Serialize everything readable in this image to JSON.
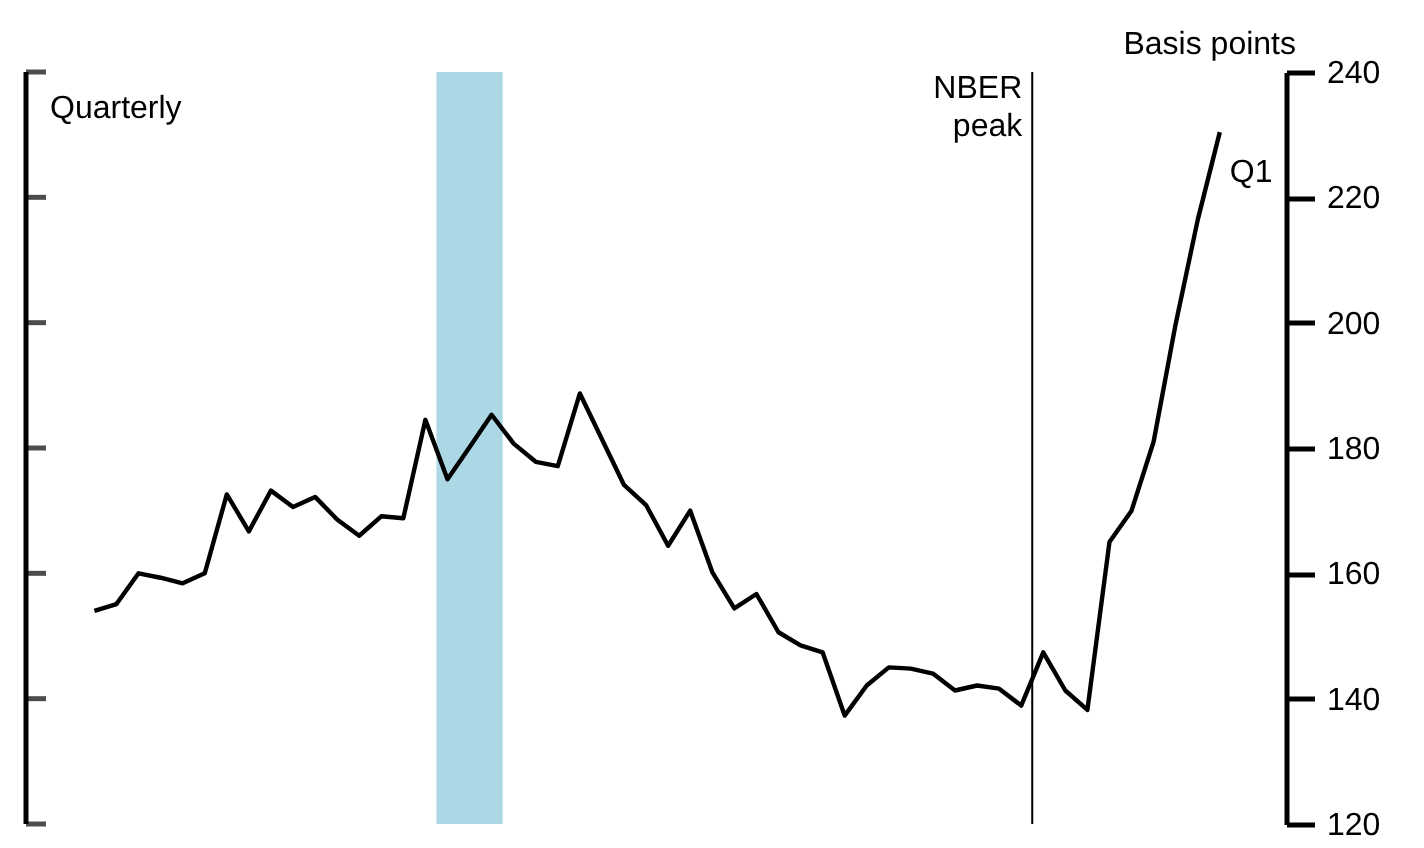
{
  "chart_data": {
    "type": "line",
    "categories": [
      null,
      null,
      null,
      null,
      null,
      null,
      null,
      null,
      null,
      null,
      null,
      null,
      null,
      null,
      null,
      null,
      null,
      null,
      null,
      null,
      null,
      null,
      null,
      null,
      null,
      null,
      null,
      null,
      null,
      null,
      null,
      null,
      null,
      null,
      null,
      null,
      null,
      null,
      null,
      null,
      null,
      null,
      null,
      null,
      null,
      null,
      null,
      null,
      null,
      null,
      null,
      null
    ],
    "series": [
      {
        "color": "#000000",
        "values": [
          154.0,
          155.1,
          160.0,
          159.3,
          158.4,
          160.0,
          172.6,
          166.7,
          173.2,
          170.6,
          172.2,
          168.6,
          166.0,
          169.1,
          168.8,
          184.5,
          175.0,
          180.1,
          185.3,
          180.7,
          177.8,
          177.1,
          188.7,
          181.4,
          174.1,
          170.9,
          164.4,
          170.0,
          160.2,
          154.4,
          156.7,
          150.6,
          148.5,
          147.4,
          137.3,
          142.1,
          145.0,
          144.8,
          144.0,
          141.3,
          142.1,
          141.6,
          138.9,
          147.4,
          141.3,
          138.2,
          165.0,
          170.0,
          181.0,
          199.8,
          216.4,
          230.4
        ]
      }
    ],
    "ylim": [
      120,
      240
    ],
    "yticks": [
      120,
      140,
      160,
      180,
      200,
      220,
      240
    ],
    "tick_labels": "y",
    "annotations": [
      "Quarterly",
      "Basis points",
      "NBER peak",
      "Q1"
    ],
    "grid": false,
    "marker": "none",
    "line_style": "solid"
  }
}
